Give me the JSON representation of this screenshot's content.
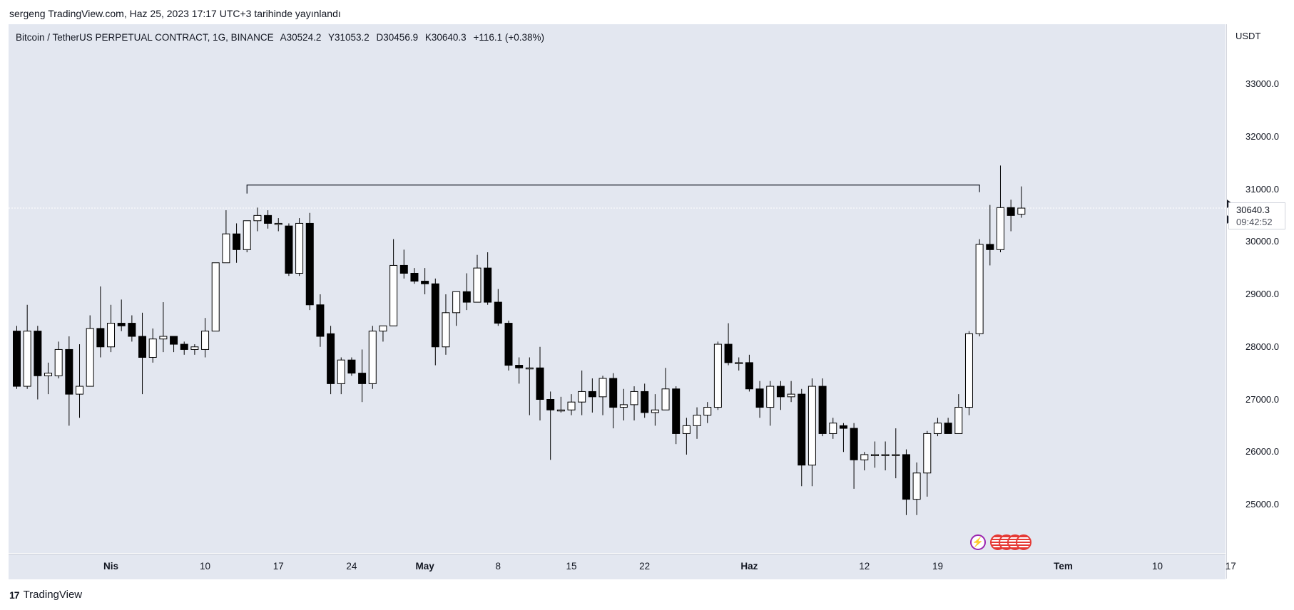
{
  "header": {
    "publisher": "sergeng TradingView.com, Haz 25, 2023 17:17 UTC+3 tarihinde yayınlandı"
  },
  "symbol": {
    "name": "Bitcoin / TetherUS PERPETUAL CONTRACT, 1G, BINANCE",
    "open": "A30524.2",
    "high": "Y31053.2",
    "low": "D30456.9",
    "close": "K30640.3",
    "change": "+116.1 (+0.38%)"
  },
  "price_axis": {
    "currency": "USDT",
    "last_price": "30640.3",
    "countdown": "09:42:52"
  },
  "footer": {
    "logo_text": "TradingView"
  },
  "colors": {
    "background": "#e3e7f0",
    "up_candle": "#ffffff",
    "down_candle": "#000000",
    "wick": "#000000",
    "event_icon": "#9c27b0",
    "flag_icon": "#e53935"
  },
  "icons": [
    "lightning-icon",
    "us-flag-icon"
  ],
  "chart_data": {
    "type": "candlestick",
    "title": "Bitcoin / TetherUS PERPETUAL CONTRACT, 1G, BINANCE",
    "ylim": [
      24100,
      34000
    ],
    "y_ticks": [
      {
        "value": 33000,
        "label": "33000.0"
      },
      {
        "value": 32000,
        "label": "32000.0"
      },
      {
        "value": 31000,
        "label": "31000.0"
      },
      {
        "value": 30000,
        "label": "30000.0"
      },
      {
        "value": 29000,
        "label": "29000.0"
      },
      {
        "value": 28000,
        "label": "28000.0"
      },
      {
        "value": 27000,
        "label": "27000.0"
      },
      {
        "value": 26000,
        "label": "26000.0"
      },
      {
        "value": 25000,
        "label": "25000.0"
      }
    ],
    "x_ticks": [
      {
        "label": "Nis",
        "index": 9,
        "bold": true
      },
      {
        "label": "10",
        "index": 18
      },
      {
        "label": "17",
        "index": 25
      },
      {
        "label": "24",
        "index": 32
      },
      {
        "label": "May",
        "index": 39,
        "bold": true
      },
      {
        "label": "8",
        "index": 46
      },
      {
        "label": "15",
        "index": 53
      },
      {
        "label": "22",
        "index": 60
      },
      {
        "label": "Haz",
        "index": 70,
        "bold": true
      },
      {
        "label": "12",
        "index": 81
      },
      {
        "label": "19",
        "index": 88
      },
      {
        "label": "Tem",
        "index": 100,
        "bold": true
      },
      {
        "label": "10",
        "index": 109
      },
      {
        "label": "17",
        "index": 116
      }
    ],
    "horizontal_line": {
      "value": 31080,
      "from_index": 22,
      "to_index": 92
    },
    "candles": [
      {
        "o": 28300,
        "h": 28400,
        "l": 27200,
        "c": 27250
      },
      {
        "o": 27250,
        "h": 28800,
        "l": 27200,
        "c": 28300
      },
      {
        "o": 28300,
        "h": 28400,
        "l": 27000,
        "c": 27450
      },
      {
        "o": 27450,
        "h": 27700,
        "l": 27100,
        "c": 27500
      },
      {
        "o": 27450,
        "h": 28100,
        "l": 27400,
        "c": 27950
      },
      {
        "o": 27950,
        "h": 28200,
        "l": 26500,
        "c": 27100
      },
      {
        "o": 27100,
        "h": 28050,
        "l": 26650,
        "c": 27250
      },
      {
        "o": 27250,
        "h": 28600,
        "l": 27250,
        "c": 28350
      },
      {
        "o": 28350,
        "h": 29150,
        "l": 27800,
        "c": 28000
      },
      {
        "o": 28000,
        "h": 28800,
        "l": 27900,
        "c": 28450
      },
      {
        "o": 28450,
        "h": 28900,
        "l": 28300,
        "c": 28400
      },
      {
        "o": 28450,
        "h": 28600,
        "l": 28100,
        "c": 28200
      },
      {
        "o": 28200,
        "h": 28650,
        "l": 27100,
        "c": 27800
      },
      {
        "o": 27800,
        "h": 28350,
        "l": 27700,
        "c": 28150
      },
      {
        "o": 28150,
        "h": 28850,
        "l": 27900,
        "c": 28200
      },
      {
        "o": 28200,
        "h": 28200,
        "l": 27900,
        "c": 28050
      },
      {
        "o": 28050,
        "h": 28100,
        "l": 27850,
        "c": 27950
      },
      {
        "o": 27950,
        "h": 28050,
        "l": 27850,
        "c": 28000
      },
      {
        "o": 27950,
        "h": 28550,
        "l": 27800,
        "c": 28300
      },
      {
        "o": 28300,
        "h": 29600,
        "l": 28300,
        "c": 29600
      },
      {
        "o": 29600,
        "h": 30600,
        "l": 29600,
        "c": 30150
      },
      {
        "o": 30150,
        "h": 30350,
        "l": 29600,
        "c": 29850
      },
      {
        "o": 29850,
        "h": 30400,
        "l": 29800,
        "c": 30400
      },
      {
        "o": 30400,
        "h": 30650,
        "l": 30200,
        "c": 30500
      },
      {
        "o": 30500,
        "h": 30600,
        "l": 30250,
        "c": 30350
      },
      {
        "o": 30350,
        "h": 30450,
        "l": 30200,
        "c": 30350
      },
      {
        "o": 30300,
        "h": 30350,
        "l": 29350,
        "c": 29400
      },
      {
        "o": 29400,
        "h": 30450,
        "l": 29350,
        "c": 30350
      },
      {
        "o": 30350,
        "h": 30550,
        "l": 28700,
        "c": 28800
      },
      {
        "o": 28800,
        "h": 29000,
        "l": 28000,
        "c": 28200
      },
      {
        "o": 28250,
        "h": 28400,
        "l": 27100,
        "c": 27300
      },
      {
        "o": 27300,
        "h": 27800,
        "l": 27100,
        "c": 27750
      },
      {
        "o": 27750,
        "h": 27800,
        "l": 27450,
        "c": 27500
      },
      {
        "o": 27500,
        "h": 27950,
        "l": 26950,
        "c": 27300
      },
      {
        "o": 27300,
        "h": 28400,
        "l": 27200,
        "c": 28300
      },
      {
        "o": 28300,
        "h": 28400,
        "l": 28100,
        "c": 28400
      },
      {
        "o": 28400,
        "h": 30050,
        "l": 28400,
        "c": 29550
      },
      {
        "o": 29550,
        "h": 29850,
        "l": 29300,
        "c": 29400
      },
      {
        "o": 29400,
        "h": 29500,
        "l": 29200,
        "c": 29250
      },
      {
        "o": 29250,
        "h": 29500,
        "l": 29000,
        "c": 29200
      },
      {
        "o": 29200,
        "h": 29300,
        "l": 27650,
        "c": 28000
      },
      {
        "o": 28000,
        "h": 29000,
        "l": 27850,
        "c": 28650
      },
      {
        "o": 28650,
        "h": 29000,
        "l": 28400,
        "c": 29050
      },
      {
        "o": 29050,
        "h": 29400,
        "l": 28700,
        "c": 28850
      },
      {
        "o": 28850,
        "h": 29750,
        "l": 28850,
        "c": 29500
      },
      {
        "o": 29500,
        "h": 29800,
        "l": 28800,
        "c": 28850
      },
      {
        "o": 28850,
        "h": 29100,
        "l": 28400,
        "c": 28450
      },
      {
        "o": 28450,
        "h": 28500,
        "l": 27550,
        "c": 27650
      },
      {
        "o": 27650,
        "h": 27800,
        "l": 27300,
        "c": 27600
      },
      {
        "o": 27600,
        "h": 27800,
        "l": 26700,
        "c": 27600
      },
      {
        "o": 27600,
        "h": 28000,
        "l": 26600,
        "c": 27000
      },
      {
        "o": 27000,
        "h": 27150,
        "l": 25850,
        "c": 26800
      },
      {
        "o": 26800,
        "h": 27050,
        "l": 26750,
        "c": 26800
      },
      {
        "o": 26800,
        "h": 27100,
        "l": 26700,
        "c": 26950
      },
      {
        "o": 26950,
        "h": 27550,
        "l": 26700,
        "c": 27150
      },
      {
        "o": 27150,
        "h": 27400,
        "l": 26750,
        "c": 27050
      },
      {
        "o": 27050,
        "h": 27450,
        "l": 26700,
        "c": 27400
      },
      {
        "o": 27400,
        "h": 27500,
        "l": 26450,
        "c": 26850
      },
      {
        "o": 26850,
        "h": 27200,
        "l": 26600,
        "c": 26900
      },
      {
        "o": 26900,
        "h": 27250,
        "l": 26600,
        "c": 27150
      },
      {
        "o": 27150,
        "h": 27300,
        "l": 26650,
        "c": 26750
      },
      {
        "o": 26750,
        "h": 27100,
        "l": 26500,
        "c": 26800
      },
      {
        "o": 26800,
        "h": 27600,
        "l": 26800,
        "c": 27200
      },
      {
        "o": 27200,
        "h": 27250,
        "l": 26150,
        "c": 26350
      },
      {
        "o": 26350,
        "h": 26650,
        "l": 25950,
        "c": 26500
      },
      {
        "o": 26500,
        "h": 26850,
        "l": 26250,
        "c": 26700
      },
      {
        "o": 26700,
        "h": 26950,
        "l": 26550,
        "c": 26850
      },
      {
        "o": 26850,
        "h": 28100,
        "l": 26800,
        "c": 28050
      },
      {
        "o": 28050,
        "h": 28450,
        "l": 27650,
        "c": 27700
      },
      {
        "o": 27700,
        "h": 27800,
        "l": 27550,
        "c": 27700
      },
      {
        "o": 27700,
        "h": 27850,
        "l": 27150,
        "c": 27200
      },
      {
        "o": 27200,
        "h": 27350,
        "l": 26650,
        "c": 26850
      },
      {
        "o": 26850,
        "h": 27350,
        "l": 26500,
        "c": 27250
      },
      {
        "o": 27250,
        "h": 27350,
        "l": 26800,
        "c": 27050
      },
      {
        "o": 27050,
        "h": 27350,
        "l": 26950,
        "c": 27100
      },
      {
        "o": 27100,
        "h": 27200,
        "l": 25350,
        "c": 25750
      },
      {
        "o": 25750,
        "h": 27400,
        "l": 25350,
        "c": 27250
      },
      {
        "o": 27250,
        "h": 27400,
        "l": 26300,
        "c": 26350
      },
      {
        "o": 26350,
        "h": 26650,
        "l": 26250,
        "c": 26550
      },
      {
        "o": 26500,
        "h": 26550,
        "l": 26000,
        "c": 26450
      },
      {
        "o": 26450,
        "h": 26550,
        "l": 25300,
        "c": 25850
      },
      {
        "o": 25850,
        "h": 26000,
        "l": 25650,
        "c": 25950
      },
      {
        "o": 25950,
        "h": 26200,
        "l": 25700,
        "c": 25950
      },
      {
        "o": 25950,
        "h": 26200,
        "l": 25650,
        "c": 25950
      },
      {
        "o": 25950,
        "h": 26450,
        "l": 25500,
        "c": 25950
      },
      {
        "o": 25950,
        "h": 26050,
        "l": 24800,
        "c": 25100
      },
      {
        "o": 25100,
        "h": 25800,
        "l": 24800,
        "c": 25600
      },
      {
        "o": 25600,
        "h": 26400,
        "l": 25150,
        "c": 26350
      },
      {
        "o": 26350,
        "h": 26650,
        "l": 26300,
        "c": 26550
      },
      {
        "o": 26550,
        "h": 26650,
        "l": 26350,
        "c": 26350
      },
      {
        "o": 26350,
        "h": 27100,
        "l": 26350,
        "c": 26850
      },
      {
        "o": 26850,
        "h": 28300,
        "l": 26700,
        "c": 28250
      },
      {
        "o": 28250,
        "h": 30050,
        "l": 28200,
        "c": 29950
      },
      {
        "o": 29950,
        "h": 30700,
        "l": 29550,
        "c": 29850
      },
      {
        "o": 29850,
        "h": 31450,
        "l": 29800,
        "c": 30650
      },
      {
        "o": 30650,
        "h": 30800,
        "l": 30200,
        "c": 30500
      },
      {
        "o": 30524,
        "h": 31053,
        "l": 30457,
        "c": 30640
      }
    ]
  }
}
